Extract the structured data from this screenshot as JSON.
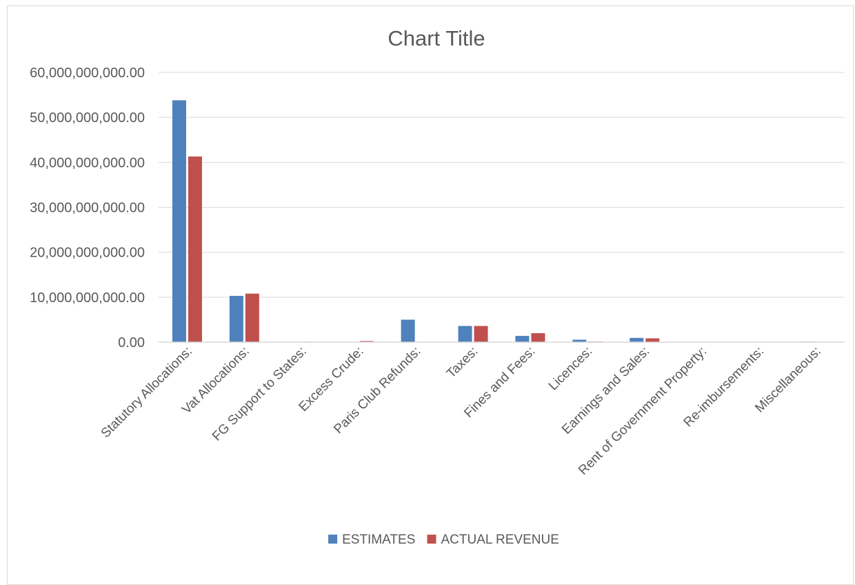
{
  "chart_data": {
    "type": "bar",
    "title": "Chart Title",
    "xlabel": "",
    "ylabel": "",
    "ylim": [
      0,
      60000000000
    ],
    "yticks": [
      0,
      10000000000,
      20000000000,
      30000000000,
      40000000000,
      50000000000,
      60000000000
    ],
    "ytick_labels": [
      "0.00",
      "10,000,000,000.00",
      "20,000,000,000.00",
      "30,000,000,000.00",
      "40,000,000,000.00",
      "50,000,000,000.00",
      "60,000,000,000.00"
    ],
    "grid": true,
    "legend_position": "bottom",
    "categories": [
      "Statutory Allocations:",
      "Vat Allocations:",
      "FG Support to States:",
      "Excess Crude:",
      "Paris Club Refunds:",
      "Taxes:",
      "Fines and Fees:",
      "Licences:",
      "Earnings and Sales:",
      "Rent of Government Property:",
      "Re-imbursements:",
      "Miscellaneous:"
    ],
    "series": [
      {
        "name": "ESTIMATES",
        "color": "#4F81BD",
        "values": [
          53800000000,
          10300000000,
          0,
          0,
          5000000000,
          3600000000,
          1400000000,
          550000000,
          950000000,
          80000000,
          80000000,
          120000000
        ]
      },
      {
        "name": "ACTUAL REVENUE",
        "color": "#C0504D",
        "values": [
          41300000000,
          10800000000,
          100000000,
          250000000,
          0,
          3600000000,
          2000000000,
          150000000,
          850000000,
          0,
          0,
          100000000
        ]
      }
    ]
  }
}
